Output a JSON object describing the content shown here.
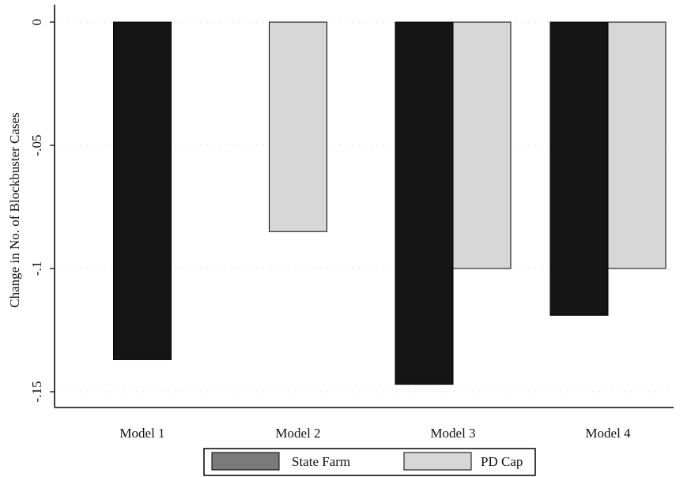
{
  "chart_data": {
    "type": "bar",
    "categories": [
      "Model 1",
      "Model 2",
      "Model 3",
      "Model 4"
    ],
    "series": [
      {
        "name": "State Farm",
        "values": [
          -0.137,
          null,
          -0.147,
          -0.119
        ],
        "color": "#151515"
      },
      {
        "name": "PD Cap",
        "values": [
          null,
          -0.085,
          -0.1,
          -0.1
        ],
        "color": "#d7d7d7"
      }
    ],
    "title": "",
    "xlabel": "",
    "ylabel": "Change in No. of Blockbuster Cases",
    "ylim": [
      -0.155,
      0.005
    ],
    "yticks": [
      0,
      -0.05,
      -0.1,
      -0.15
    ],
    "ytick_labels": [
      "0",
      "-.05",
      "-.1",
      "-.15"
    ],
    "grid": true,
    "legend_position": "bottom-center"
  }
}
